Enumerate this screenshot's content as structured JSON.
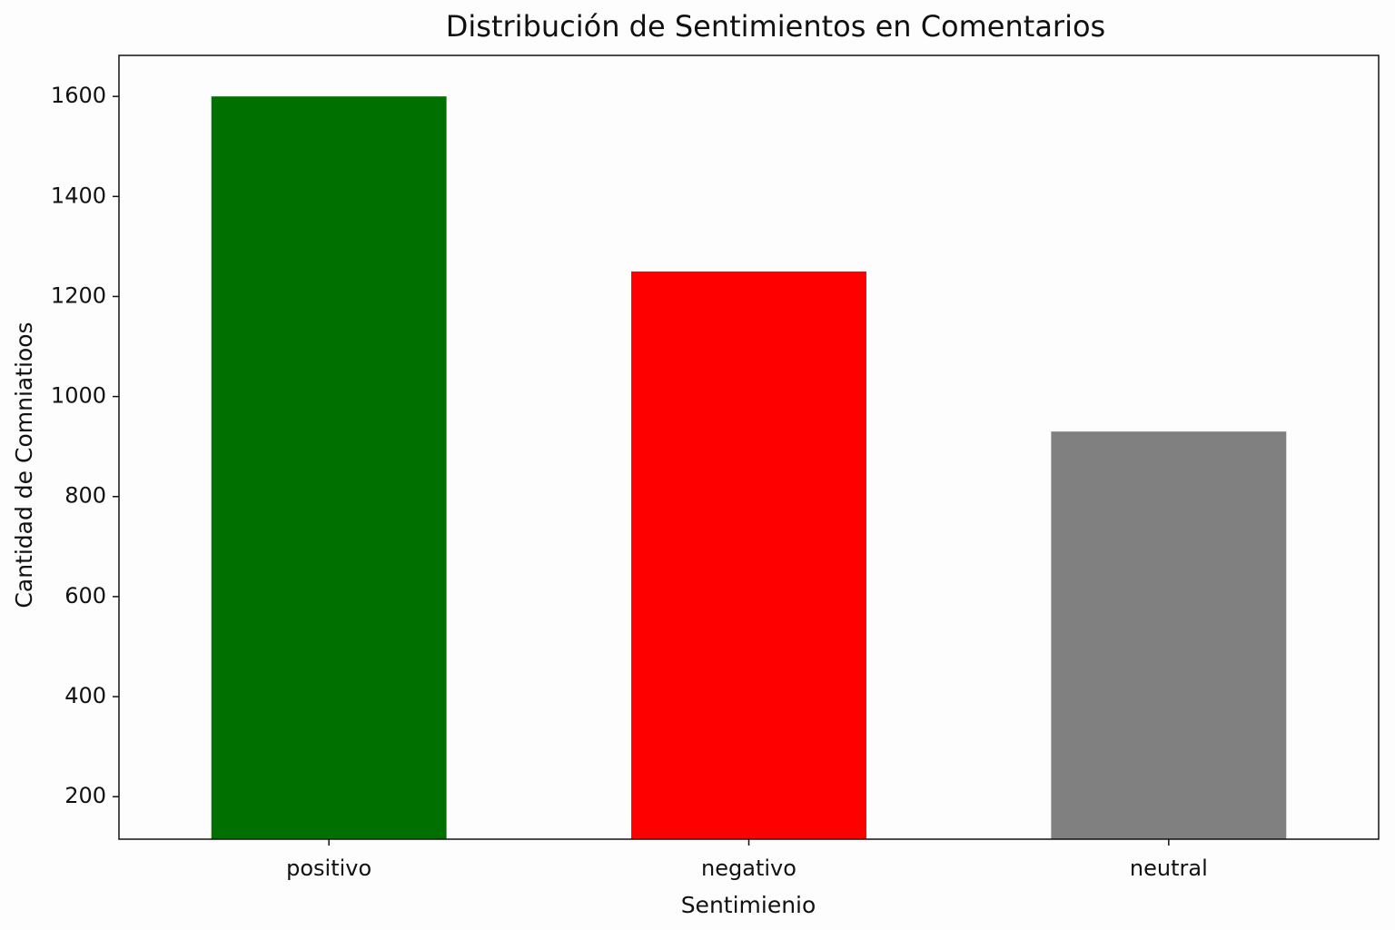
{
  "chart_data": {
    "type": "bar",
    "title": "Distribución de Sentimientos en Comentarios",
    "x_label": "Sentimienio",
    "y_label": "Cantidad de Comniatioos",
    "categories": [
      "positivo",
      "negativo",
      "neutral"
    ],
    "values": [
      1600,
      1250,
      930
    ],
    "colors": [
      "#007000",
      "#ff0000",
      "#808080"
    ],
    "ylim": [
      115,
      1682
    ],
    "yticks": [
      200,
      400,
      600,
      800,
      1000,
      1200,
      1400,
      1600
    ],
    "grid": false
  }
}
